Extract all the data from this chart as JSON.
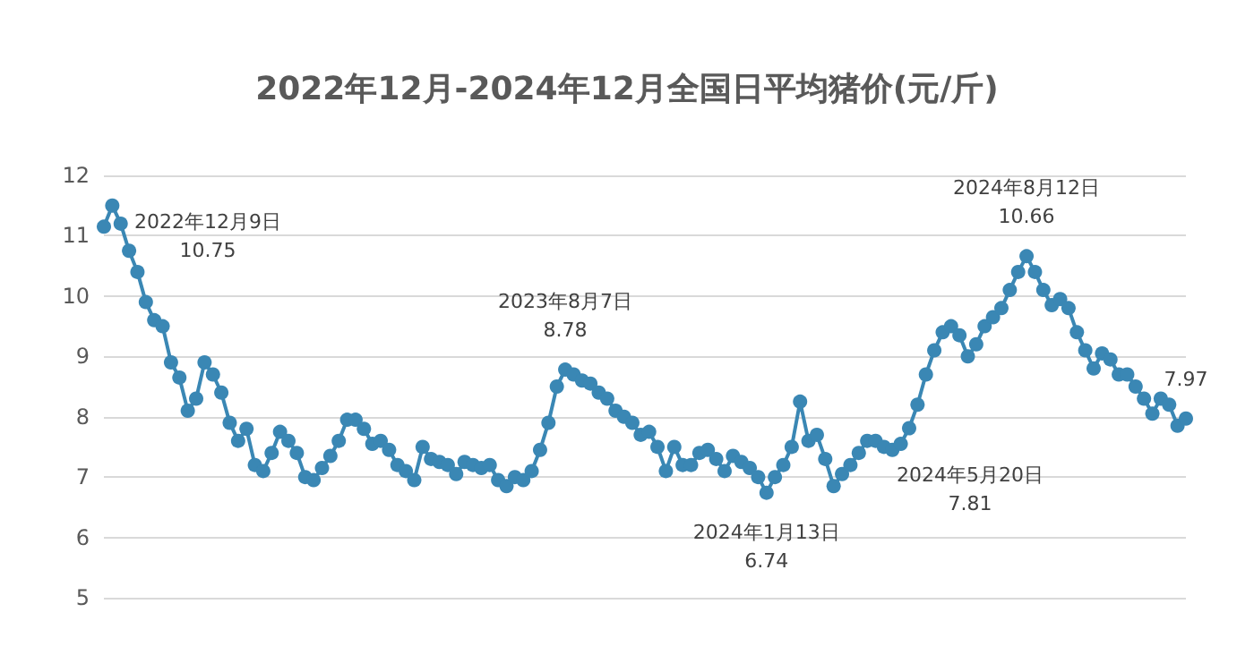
{
  "chart_data": {
    "type": "line",
    "title": "2022年12月-2024年12月全国日平均猪价(元/斤)",
    "categories": [
      null,
      null,
      null,
      null,
      null,
      null,
      null,
      null,
      null,
      null,
      null,
      null,
      null,
      null,
      null,
      null,
      null,
      null,
      null,
      null,
      null,
      null,
      null,
      null,
      null,
      null,
      null,
      null,
      null,
      null,
      null,
      null,
      null,
      null,
      null,
      null,
      null,
      null,
      null,
      null,
      null,
      null,
      null,
      null,
      null,
      null,
      null,
      null,
      null,
      null,
      null,
      null,
      null,
      null,
      null,
      null,
      null,
      null,
      null,
      null,
      null,
      null,
      null,
      null,
      null,
      null,
      null,
      null,
      null,
      null,
      null,
      null,
      null,
      null,
      null,
      null,
      null,
      null,
      null,
      null,
      null,
      null,
      null,
      null,
      null,
      null,
      null,
      null,
      null,
      null,
      null,
      null,
      null,
      null,
      null,
      null,
      null,
      null,
      null,
      null,
      null,
      null,
      null,
      null,
      null,
      null,
      null,
      null,
      null,
      null,
      null,
      null,
      null,
      null,
      null,
      null,
      null,
      null,
      null,
      null,
      null,
      null,
      null,
      null,
      null,
      null,
      null,
      null,
      null,
      null
    ],
    "series": [
      {
        "color": "#3a87b4",
        "values": [
          11.15,
          11.5,
          11.2,
          10.75,
          10.4,
          9.9,
          9.6,
          9.5,
          8.9,
          8.65,
          8.1,
          8.3,
          8.9,
          8.7,
          8.4,
          7.9,
          7.6,
          7.8,
          7.2,
          7.1,
          7.4,
          7.75,
          7.6,
          7.4,
          7.0,
          6.95,
          7.15,
          7.35,
          7.6,
          7.95,
          7.95,
          7.8,
          7.55,
          7.6,
          7.45,
          7.2,
          7.1,
          6.95,
          7.5,
          7.3,
          7.25,
          7.2,
          7.05,
          7.25,
          7.2,
          7.15,
          7.2,
          6.95,
          6.85,
          7.0,
          6.95,
          7.1,
          7.45,
          7.9,
          8.5,
          8.78,
          8.7,
          8.6,
          8.55,
          8.4,
          8.3,
          8.1,
          8.0,
          7.9,
          7.7,
          7.75,
          7.5,
          7.1,
          7.5,
          7.2,
          7.2,
          7.4,
          7.45,
          7.3,
          7.1,
          7.35,
          7.25,
          7.15,
          7.0,
          6.74,
          7.0,
          7.2,
          7.5,
          8.25,
          7.6,
          7.7,
          7.3,
          6.85,
          7.05,
          7.2,
          7.4,
          7.6,
          7.6,
          7.5,
          7.45,
          7.55,
          7.81,
          8.2,
          8.7,
          9.1,
          9.4,
          9.5,
          9.35,
          9.0,
          9.2,
          9.5,
          9.65,
          9.8,
          10.1,
          10.4,
          10.66,
          10.4,
          10.1,
          9.85,
          9.95,
          9.8,
          9.4,
          9.1,
          8.8,
          9.05,
          8.95,
          8.7,
          8.7,
          8.5,
          8.3,
          8.05,
          8.3,
          8.2,
          7.85,
          7.97
        ],
        "value_labels": [
          null,
          null,
          null,
          "2022年12月9日\n10.75",
          null,
          null,
          null,
          null,
          null,
          null,
          null,
          null,
          null,
          null,
          null,
          null,
          null,
          null,
          null,
          null,
          null,
          null,
          null,
          null,
          null,
          null,
          null,
          null,
          null,
          null,
          null,
          null,
          null,
          null,
          null,
          null,
          null,
          null,
          null,
          null,
          null,
          null,
          null,
          null,
          null,
          null,
          null,
          null,
          null,
          null,
          null,
          null,
          null,
          null,
          null,
          "2023年8月7日\n8.78",
          null,
          null,
          null,
          null,
          null,
          null,
          null,
          null,
          null,
          null,
          null,
          null,
          null,
          null,
          null,
          null,
          null,
          null,
          null,
          null,
          null,
          null,
          null,
          "2024年1月13日\n6.74",
          null,
          null,
          null,
          null,
          null,
          null,
          null,
          null,
          null,
          null,
          null,
          null,
          null,
          null,
          null,
          null,
          "2024年5月20日\n7.81",
          null,
          null,
          null,
          null,
          null,
          null,
          null,
          null,
          null,
          null,
          null,
          null,
          null,
          "2024年8月12日\n10.66",
          null,
          null,
          null,
          null,
          null,
          null,
          null,
          null,
          null,
          null,
          null,
          null,
          null,
          null,
          null,
          null,
          null,
          null,
          "7.97"
        ]
      }
    ],
    "ylim": [
      5,
      12
    ],
    "yticks": [
      5,
      6,
      7,
      8,
      9,
      10,
      11,
      12
    ],
    "grid": "y",
    "marker": "circle"
  }
}
